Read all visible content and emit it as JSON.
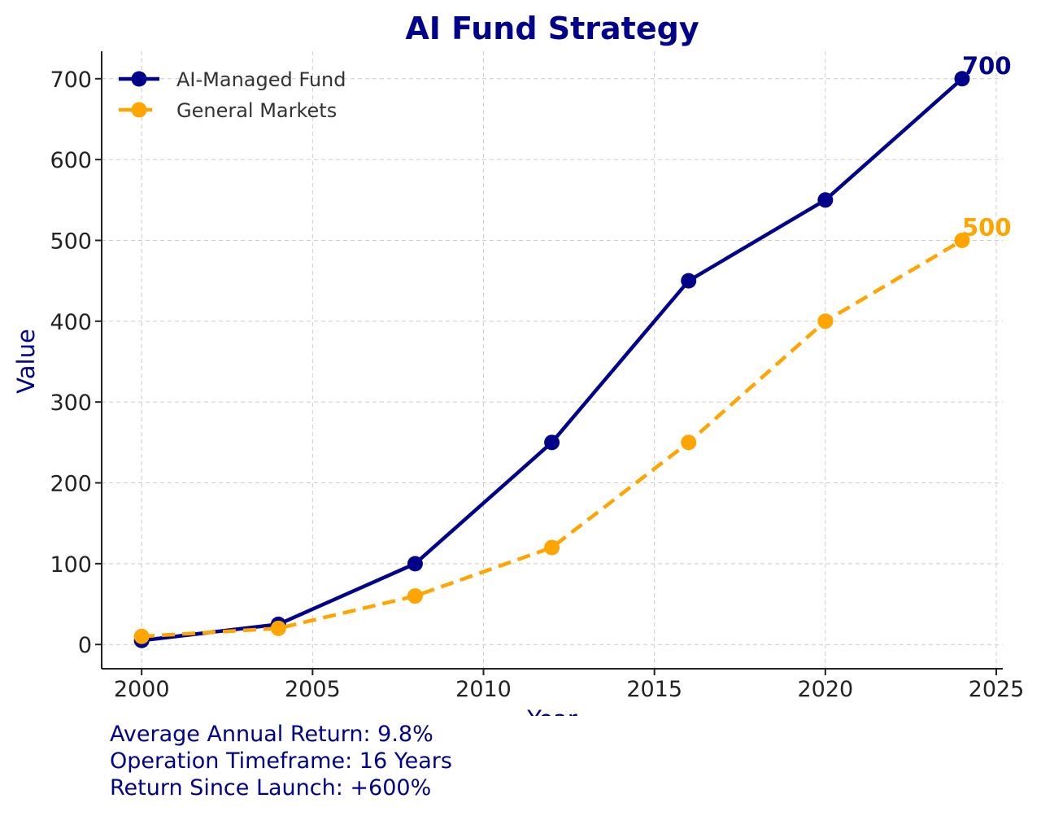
{
  "chart_data": {
    "type": "line",
    "title": "AI Fund Strategy",
    "xlabel": "Year",
    "ylabel": "Value",
    "xlim": [
      1998.83,
      2025.19
    ],
    "ylim": [
      -30,
      734
    ],
    "xticks": [
      2000,
      2005,
      2010,
      2015,
      2020,
      2025
    ],
    "yticks": [
      0,
      100,
      200,
      300,
      400,
      500,
      600,
      700
    ],
    "grid": true,
    "legend_position": "top-left",
    "x": [
      2000,
      2004,
      2008,
      2012,
      2016,
      2020,
      2024
    ],
    "series": [
      {
        "name": "AI-Managed Fund",
        "values": [
          5,
          25,
          100,
          250,
          450,
          550,
          700
        ],
        "color": "#00008B",
        "style": "solid",
        "end_label": "700"
      },
      {
        "name": "General Markets",
        "values": [
          10,
          20,
          60,
          120,
          250,
          400,
          500
        ],
        "color": "#FFA500",
        "style": "dashed",
        "end_label": "500"
      }
    ]
  },
  "footer": {
    "lines": [
      "Average Annual Return: 9.8%",
      "Operation Timeframe: 16 Years",
      "Return Since Launch: +600%"
    ]
  }
}
